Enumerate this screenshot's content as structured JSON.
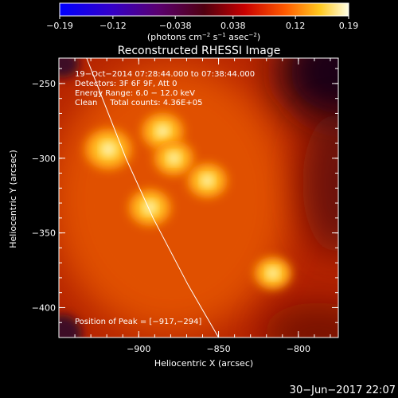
{
  "chart_data": {
    "type": "heatmap",
    "title": "Reconstructed RHESSI Image",
    "xlabel": "Heliocentric X (arcsec)",
    "ylabel": "Heliocentric Y (arcsec)",
    "xlim": [
      -950,
      -775
    ],
    "ylim": [
      -420,
      -233
    ],
    "x_ticks": [
      {
        "value": -900,
        "label": "−900"
      },
      {
        "value": -850,
        "label": "−850"
      },
      {
        "value": -800,
        "label": "−800"
      }
    ],
    "y_ticks": [
      {
        "value": -250,
        "label": "−250"
      },
      {
        "value": -300,
        "label": "−300"
      },
      {
        "value": -350,
        "label": "−350"
      },
      {
        "value": -400,
        "label": "−400"
      }
    ],
    "colorbar": {
      "min": -0.19,
      "max": 0.19,
      "tick_values": [
        -0.19,
        -0.12,
        -0.038,
        0.038,
        0.12,
        0.19
      ],
      "tick_labels": [
        "−0.19",
        "−0.12",
        "−0.038",
        "0.038",
        "0.12",
        "0.19"
      ],
      "unit_label": "(photons cm",
      "unit_exp1": "−2",
      "unit_mid": " s",
      "unit_exp2": "−1",
      "unit_mid2": " asec",
      "unit_exp3": "−2",
      "unit_end": ")"
    },
    "annotations": {
      "time_range": "19−Oct−2014 07:28:44.000 to 07:38:44.000",
      "detectors": "Detectors: 3F 6F 9F, Att 0",
      "energy": "Energy Range: 6.0 − 12.0 keV",
      "method": "Clean     Total counts: 4.36E+05",
      "peak": "Position of Peak = [−917,−294]"
    },
    "sources": [
      {
        "x": -919,
        "y": -294,
        "intensity": 0.19
      },
      {
        "x": -885,
        "y": -282,
        "intensity": 0.17
      },
      {
        "x": -878,
        "y": -300,
        "intensity": 0.16
      },
      {
        "x": -857,
        "y": -315,
        "intensity": 0.16
      },
      {
        "x": -893,
        "y": -333,
        "intensity": 0.17
      },
      {
        "x": -816,
        "y": -377,
        "intensity": 0.15
      }
    ],
    "limb": [
      [
        -933,
        -232
      ],
      [
        -922,
        -262
      ],
      [
        -908,
        -300
      ],
      [
        -891,
        -340
      ],
      [
        -869,
        -385
      ],
      [
        -850,
        -420
      ]
    ]
  },
  "footer": {
    "date": "30−Jun−2017 22:07"
  },
  "colors": {
    "background": "#000000",
    "foreground": "#ffffff"
  }
}
